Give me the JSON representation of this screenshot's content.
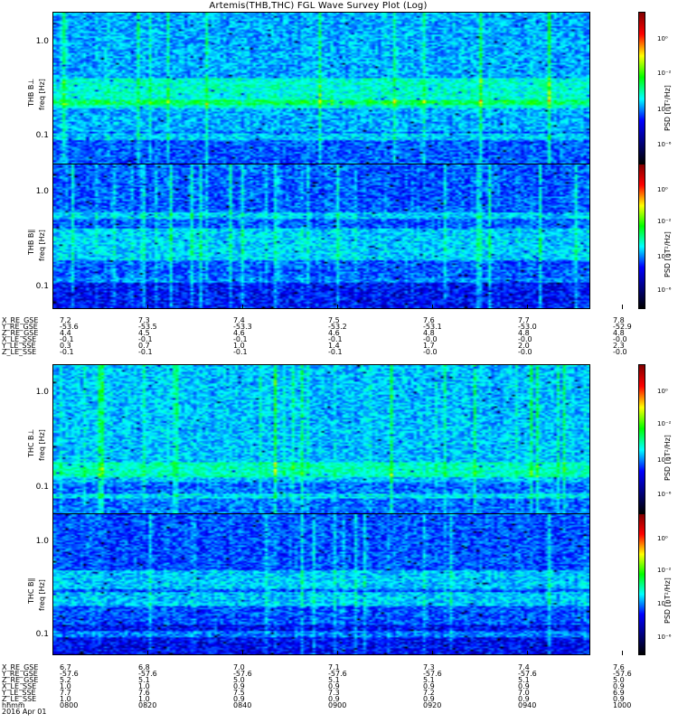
{
  "title": "Artemis(THB,THC) FGL Wave Survey Plot (Log)",
  "colorbar": {
    "label": "PSD [nT²/Hz]",
    "ticks": [
      "10⁰",
      "10⁻²",
      "10⁻⁴",
      "10⁻⁶"
    ],
    "colors": [
      "#800000",
      "#ff0000",
      "#ffff00",
      "#00ff00",
      "#00ffff",
      "#0000ff",
      "#000080",
      "#000000"
    ]
  },
  "chart_data": [
    {
      "type": "heatmap",
      "panel": "THB BL",
      "ylabel_top": "THB B⊥",
      "ylabel": "freq [Hz]",
      "ytick_labels": [
        "1.0",
        "0.1"
      ],
      "yscale": "log",
      "ylim": [
        0.05,
        2.2
      ],
      "zscale": "log",
      "zlim": [
        1e-06,
        10.0
      ]
    },
    {
      "type": "heatmap",
      "panel": "THB Bpar",
      "ylabel_top": "THB B∥",
      "ylabel": "freq [Hz]",
      "ytick_labels": [
        "1.0",
        "0.1"
      ],
      "yscale": "log",
      "ylim": [
        0.05,
        2.2
      ],
      "zscale": "log",
      "zlim": [
        1e-06,
        10.0
      ]
    },
    {
      "type": "heatmap",
      "panel": "THC BL",
      "ylabel_top": "THC B⊥",
      "ylabel": "freq [Hz]",
      "ytick_labels": [
        "1.0",
        "0.1"
      ],
      "yscale": "log",
      "ylim": [
        0.05,
        2.2
      ],
      "zscale": "log",
      "zlim": [
        1e-06,
        10.0
      ]
    },
    {
      "type": "heatmap",
      "panel": "THC Bpar",
      "ylabel_top": "THC B∥",
      "ylabel": "freq [Hz]",
      "ytick_labels": [
        "1.0",
        "0.1"
      ],
      "yscale": "log",
      "ylim": [
        0.05,
        2.2
      ],
      "zscale": "log",
      "zlim": [
        1e-06,
        10.0
      ]
    }
  ],
  "ephem_thb": {
    "labels": [
      "X_RE_GSE",
      "Y_RE_GSE",
      "Z_RE_GSE",
      "X_LE_SSE",
      "Y_LE_SSE",
      "Z_LE_SSE"
    ],
    "columns": [
      [
        "7.2",
        "-53.6",
        "4.4",
        "-0.1",
        "0.3",
        "-0.1"
      ],
      [
        "7.3",
        "-53.5",
        "4.5",
        "-0.1",
        "0.7",
        "-0.1"
      ],
      [
        "7.4",
        "-53.3",
        "4.6",
        "-0.1",
        "1.0",
        "-0.1"
      ],
      [
        "7.5",
        "-53.2",
        "4.6",
        "-0.1",
        "1.4",
        "-0.1"
      ],
      [
        "7.6",
        "-53.1",
        "4.8",
        "-0.0",
        "1.7",
        "-0.0"
      ],
      [
        "7.7",
        "-53.0",
        "4.8",
        "-0.0",
        "2.0",
        "-0.0"
      ],
      [
        "7.8",
        "-52.9",
        "4.8",
        "-0.0",
        "2.3",
        "-0.0"
      ]
    ]
  },
  "ephem_thc": {
    "labels": [
      "X_RE_GSE",
      "Y_RE_GSE",
      "Z_RE_GSE",
      "X_LE_SSE",
      "Y_LE_SSE",
      "Z_LE_SSE",
      "hhmm",
      "2016 Apr 01"
    ],
    "columns": [
      [
        "6.7",
        "-57.6",
        "5.2",
        "1.0",
        "7.7",
        "1.0",
        "0800"
      ],
      [
        "6.8",
        "-57.6",
        "5.1",
        "1.0",
        "7.6",
        "1.0",
        "0820"
      ],
      [
        "7.0",
        "-57.6",
        "5.0",
        "0.9",
        "7.5",
        "0.9",
        "0840"
      ],
      [
        "7.1",
        "-57.6",
        "5.1",
        "0.9",
        "7.3",
        "0.9",
        "0900"
      ],
      [
        "7.3",
        "-57.6",
        "5.1",
        "0.9",
        "7.2",
        "0.9",
        "0920"
      ],
      [
        "7.4",
        "-57.6",
        "5.1",
        "0.9",
        "7.0",
        "0.9",
        "0940"
      ],
      [
        "7.6",
        "-57.6",
        "5.0",
        "0.9",
        "6.9",
        "0.9",
        "1000"
      ]
    ]
  }
}
